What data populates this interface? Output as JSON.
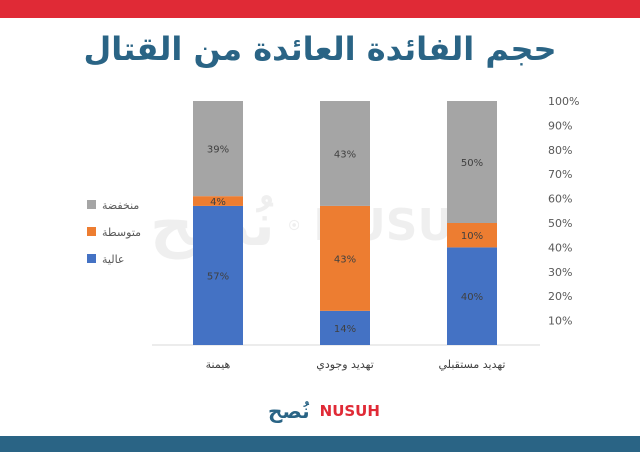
{
  "header": {
    "title": "حجم الفائدة العائدة من القتال"
  },
  "brand": {
    "name_ar": "نُصح",
    "name_en": "NUSUH",
    "colors": {
      "red": "#e02a36",
      "blue": "#2a6485"
    }
  },
  "chart_data": {
    "type": "stacked-bar-100",
    "categories": [
      "هيمنة",
      "تهديد وجودي",
      "تهديد مستقبلي"
    ],
    "series": [
      {
        "name": "عالية",
        "color": "#4472c4",
        "values": [
          57,
          14,
          40
        ]
      },
      {
        "name": "متوسطة",
        "color": "#ed7d31",
        "values": [
          4,
          43,
          10
        ]
      },
      {
        "name": "منخفضة",
        "color": "#a5a5a5",
        "values": [
          39,
          43,
          50
        ]
      }
    ],
    "ylim": [
      0,
      100
    ],
    "y_ticks": [
      "10%",
      "20%",
      "30%",
      "40%",
      "50%",
      "60%",
      "70%",
      "80%",
      "90%",
      "100%"
    ],
    "y_axis_side": "right",
    "legend_position": "left",
    "grid": false
  }
}
